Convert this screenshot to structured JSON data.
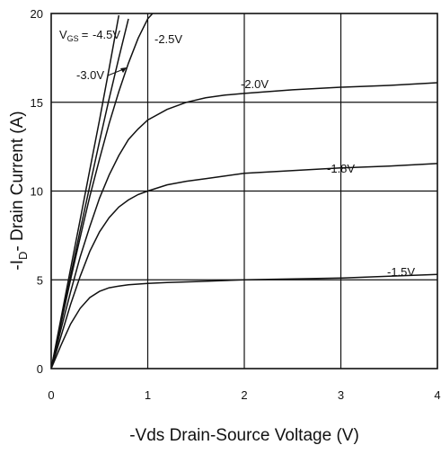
{
  "chart_data": {
    "type": "line",
    "xlabel": "-Vds Drain-Source Voltage (V)",
    "ylabel_prefix": "-I",
    "ylabel_sub": "D",
    "ylabel_suffix": "- Drain Current (A)",
    "xlim": [
      0,
      4
    ],
    "ylim": [
      0,
      20
    ],
    "xticks": [
      "0",
      "1",
      "2",
      "3",
      "4"
    ],
    "yticks": [
      "0",
      "5",
      "10",
      "15",
      "20"
    ],
    "grid": true,
    "legend_prefix": "V",
    "legend_sub": "GS",
    "series": [
      {
        "name": "-4.5V",
        "x": [
          0,
          0.1,
          0.2,
          0.3,
          0.4,
          0.5,
          0.6,
          0.7
        ],
        "y": [
          0,
          2.8,
          5.6,
          8.4,
          11.2,
          14.0,
          16.9,
          19.9
        ]
      },
      {
        "name": "-3.0V",
        "x": [
          0,
          0.1,
          0.2,
          0.3,
          0.4,
          0.5,
          0.6,
          0.7,
          0.8
        ],
        "y": [
          0,
          2.6,
          5.2,
          7.8,
          10.3,
          12.8,
          15.2,
          17.5,
          19.7
        ]
      },
      {
        "name": "-2.5V",
        "x": [
          0,
          0.1,
          0.2,
          0.3,
          0.4,
          0.5,
          0.6,
          0.7,
          0.8,
          0.9,
          1.0,
          1.05
        ],
        "y": [
          0,
          2.5,
          5.0,
          7.4,
          9.7,
          11.8,
          13.8,
          15.6,
          17.2,
          18.6,
          19.7,
          20.0
        ]
      },
      {
        "name": "-2.0V",
        "x": [
          0,
          0.1,
          0.2,
          0.3,
          0.4,
          0.5,
          0.6,
          0.7,
          0.8,
          0.9,
          1.0,
          1.2,
          1.4,
          1.6,
          1.8,
          2.0,
          2.5,
          3.0,
          3.5,
          4.0
        ],
        "y": [
          0,
          2.2,
          4.3,
          6.3,
          8.0,
          9.6,
          10.9,
          12.0,
          12.9,
          13.5,
          14.0,
          14.6,
          15.0,
          15.25,
          15.4,
          15.5,
          15.7,
          15.85,
          15.95,
          16.1
        ]
      },
      {
        "name": "-1.8V",
        "x": [
          0,
          0.1,
          0.2,
          0.3,
          0.4,
          0.5,
          0.6,
          0.7,
          0.8,
          0.9,
          1.0,
          1.2,
          1.4,
          1.6,
          1.8,
          2.0,
          2.5,
          3.0,
          3.5,
          4.0
        ],
        "y": [
          0,
          1.8,
          3.6,
          5.2,
          6.6,
          7.7,
          8.5,
          9.1,
          9.5,
          9.8,
          10.0,
          10.35,
          10.55,
          10.7,
          10.85,
          11.0,
          11.15,
          11.3,
          11.4,
          11.55
        ]
      },
      {
        "name": "-1.5V",
        "x": [
          0,
          0.1,
          0.2,
          0.3,
          0.4,
          0.5,
          0.6,
          0.7,
          0.8,
          1.0,
          1.2,
          1.5,
          2.0,
          2.5,
          3.0,
          3.5,
          4.0
        ],
        "y": [
          0,
          1.3,
          2.5,
          3.4,
          4.0,
          4.35,
          4.55,
          4.65,
          4.72,
          4.8,
          4.85,
          4.9,
          5.0,
          5.05,
          5.1,
          5.2,
          5.3
        ]
      }
    ]
  }
}
